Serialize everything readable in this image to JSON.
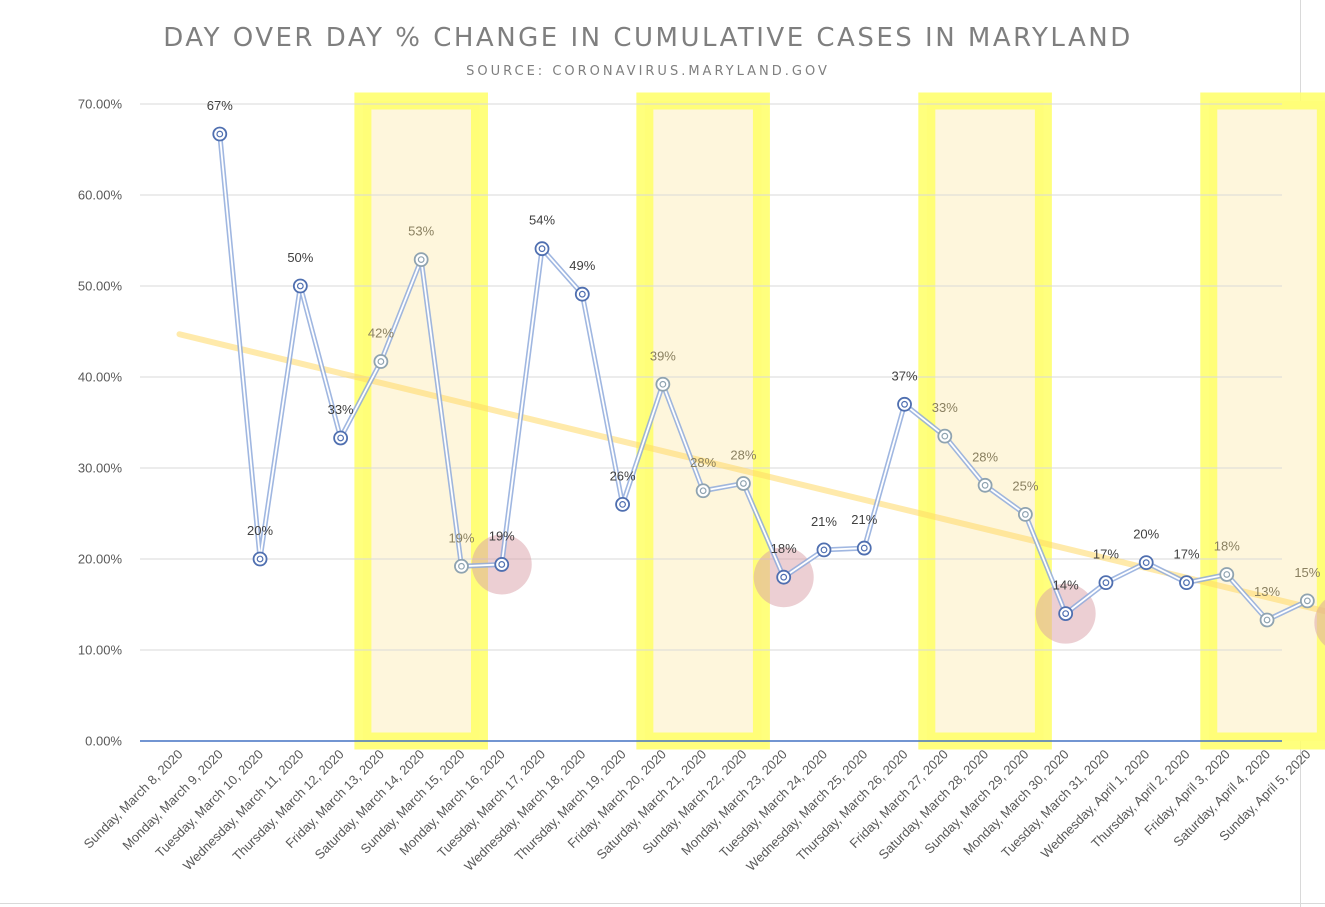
{
  "chart_data": {
    "type": "line",
    "title": "DAY OVER DAY % CHANGE IN CUMULATIVE CASES IN MARYLAND",
    "subtitle": "SOURCE: CORONAVIRUS.MARYLAND.GOV",
    "xlabel": "",
    "ylabel": "",
    "ylim": [
      0,
      70
    ],
    "y_ticks": [
      "0.00%",
      "10.00%",
      "20.00%",
      "30.00%",
      "40.00%",
      "50.00%",
      "60.00%",
      "70.00%"
    ],
    "grid": true,
    "legend": "none",
    "categories": [
      "Sunday, March 8, 2020",
      "Monday, March 9, 2020",
      "Tuesday, March 10, 2020",
      "Wednesday, March 11, 2020",
      "Thursday, March 12, 2020",
      "Friday, March 13, 2020",
      "Saturday, March 14, 2020",
      "Sunday, March 15, 2020",
      "Monday, March 16, 2020",
      "Tuesday, March 17, 2020",
      "Wednesday, March 18, 2020",
      "Thursday, March 19, 2020",
      "Friday, March 20, 2020",
      "Saturday, March 21, 2020",
      "Sunday, March 22, 2020",
      "Monday, March 23, 2020",
      "Tuesday, March 24, 2020",
      "Wednesday, March 25, 2020",
      "Thursday, March 26, 2020",
      "Friday, March 27, 2020",
      "Saturday, March 28, 2020",
      "Sunday, March 29, 2020",
      "Monday, March 30, 2020",
      "Tuesday, March 31, 2020",
      "Wednesday, April 1, 2020",
      "Thursday, April 2, 2020",
      "Friday, April 3, 2020",
      "Saturday, April 4, 2020",
      "Sunday, April 5, 2020"
    ],
    "series": [
      {
        "values": [
          null,
          66.7,
          20.0,
          50.0,
          33.3,
          41.7,
          52.9,
          19.2,
          19.4,
          54.1,
          49.1,
          26.0,
          39.2,
          27.5,
          28.3,
          18.0,
          21.0,
          21.2,
          37.0,
          33.5,
          28.1,
          24.9,
          14.0,
          17.4,
          19.6,
          17.4,
          18.3,
          13.3,
          15.4
        ],
        "labels": [
          "",
          "67%",
          "20%",
          "50%",
          "33%",
          "42%",
          "53%",
          "19%",
          "19%",
          "54%",
          "49%",
          "26%",
          "39%",
          "28%",
          "28%",
          "18%",
          "21%",
          "21%",
          "37%",
          "33%",
          "28%",
          "25%",
          "14%",
          "17%",
          "20%",
          "17%",
          "18%",
          "13%",
          "15%"
        ]
      }
    ],
    "trendline": {
      "start_value": 44.7,
      "end_value": 14.2
    },
    "weekend_highlights": [
      [
        5,
        7
      ],
      [
        12,
        14
      ],
      [
        19,
        21
      ],
      [
        26,
        28
      ]
    ],
    "circled_points": [
      8,
      15,
      22
    ],
    "next_point_marker": {
      "label": "?",
      "value": 13.0
    },
    "colors": {
      "line": "#8faadc",
      "marker": "#4f6fb0",
      "trend": "#ffd966",
      "weekend_fill": "#fef6dc",
      "weekend_border": "#ffff66",
      "circle": "#d9a0a8",
      "axis_line": "#4472c4",
      "grid": "#d9d9d9"
    }
  }
}
